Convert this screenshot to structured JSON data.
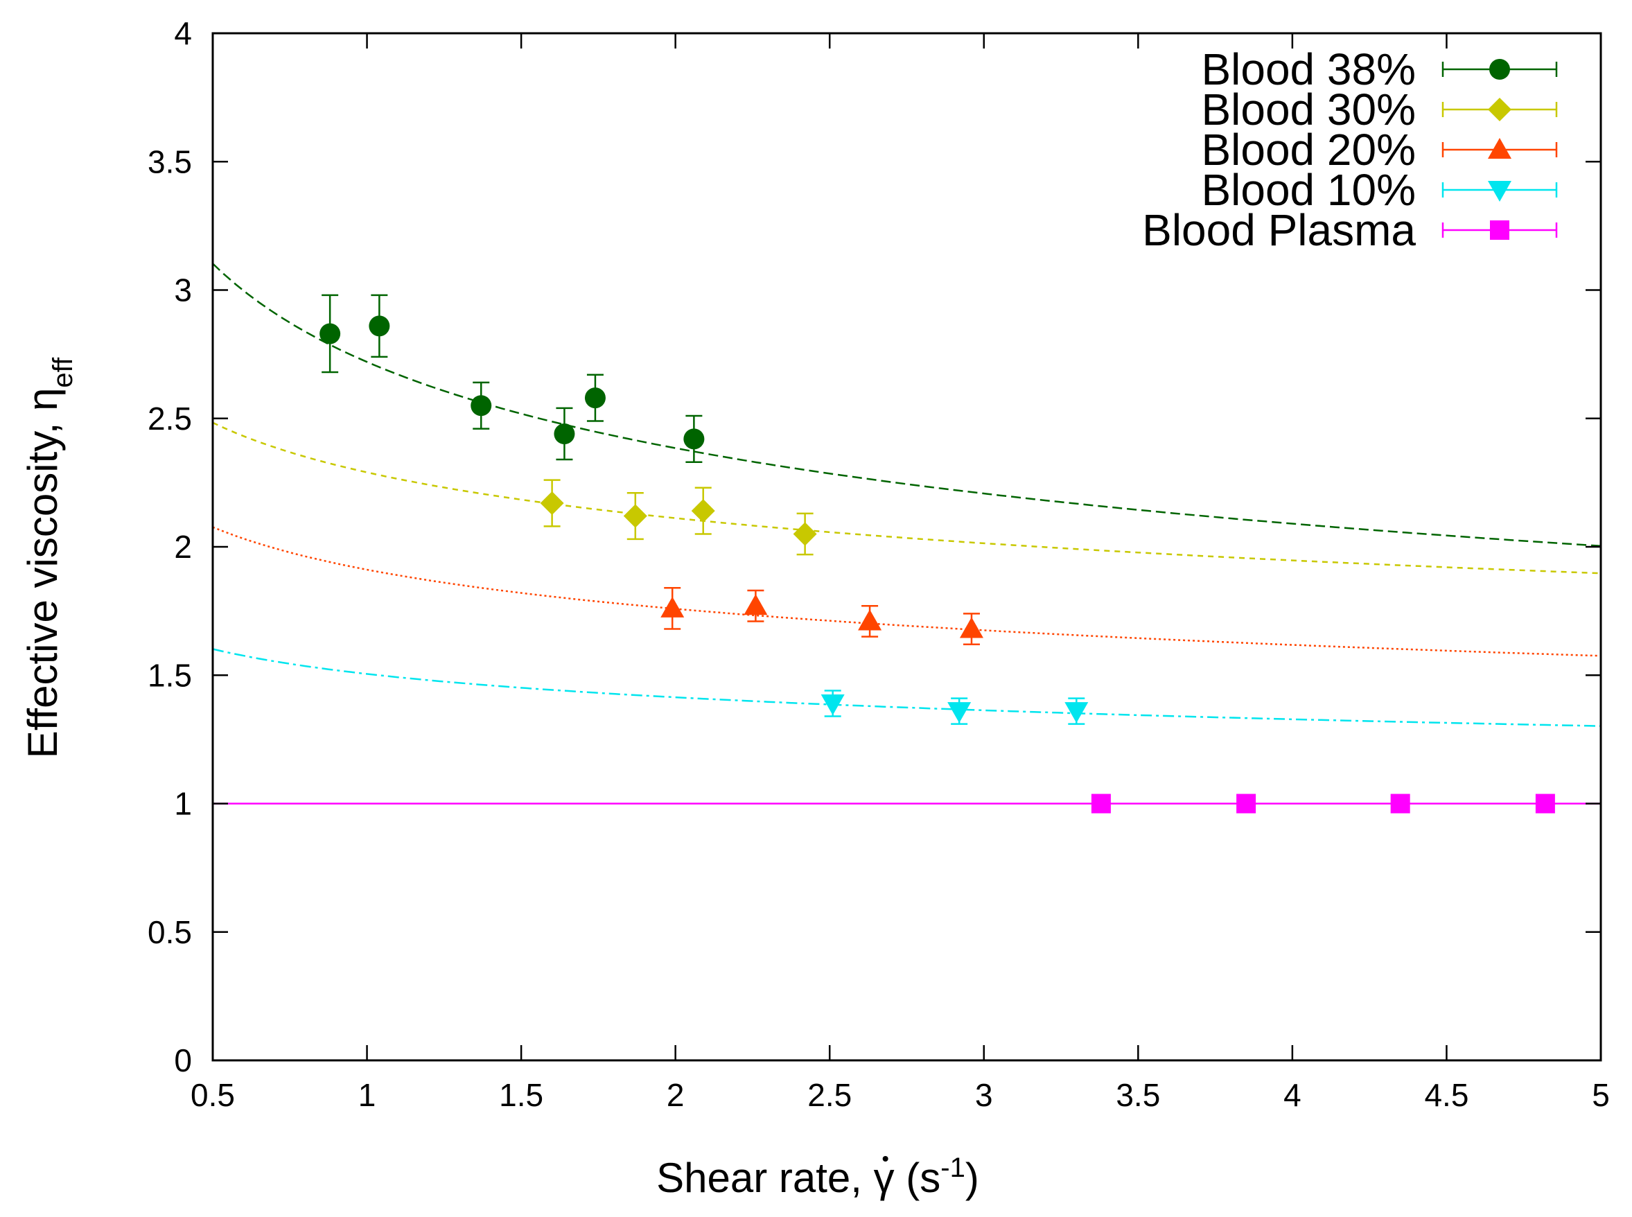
{
  "chart_data": {
    "type": "scatter",
    "xlabel_main": "Shear rate, ",
    "xlabel_symbol": "γ",
    "xlabel_unit": " (s",
    "xlabel_exp": "-1",
    "xlabel_close": ")",
    "ylabel_main": "Effective viscosity, η",
    "ylabel_sub": "eff",
    "xlim": [
      0.5,
      5
    ],
    "ylim": [
      0,
      4
    ],
    "xticks": [
      0.5,
      1,
      1.5,
      2,
      2.5,
      3,
      3.5,
      4,
      4.5,
      5
    ],
    "yticks": [
      0,
      0.5,
      1,
      1.5,
      2,
      2.5,
      3,
      3.5,
      4
    ],
    "xtick_labels": [
      "0.5",
      "1",
      "1.5",
      "2",
      "2.5",
      "3",
      "3.5",
      "4",
      "4.5",
      "5"
    ],
    "ytick_labels": [
      "0",
      "0.5",
      "1",
      "1.5",
      "2",
      "2.5",
      "3",
      "3.5",
      "4"
    ],
    "legend_position": "top-right",
    "grid": false,
    "series": [
      {
        "name": "Blood 38%",
        "color": "#006400",
        "marker": "circle",
        "points": [
          {
            "x": 0.88,
            "y": 2.83,
            "err": 0.15
          },
          {
            "x": 1.04,
            "y": 2.86,
            "err": 0.12
          },
          {
            "x": 1.37,
            "y": 2.55,
            "err": 0.09
          },
          {
            "x": 1.64,
            "y": 2.44,
            "err": 0.1
          },
          {
            "x": 1.74,
            "y": 2.58,
            "err": 0.09
          },
          {
            "x": 2.06,
            "y": 2.42,
            "err": 0.09
          }
        ],
        "fit": {
          "a": 2.72,
          "b": -0.19,
          "dash": "dashed"
        }
      },
      {
        "name": "Blood 30%",
        "color": "#c8c800",
        "marker": "diamond",
        "points": [
          {
            "x": 1.6,
            "y": 2.17,
            "err": 0.09
          },
          {
            "x": 1.87,
            "y": 2.12,
            "err": 0.09
          },
          {
            "x": 2.09,
            "y": 2.14,
            "err": 0.09
          },
          {
            "x": 2.42,
            "y": 2.05,
            "err": 0.08
          }
        ],
        "fit": {
          "a": 2.29,
          "b": -0.117,
          "dash": "short-dashed"
        }
      },
      {
        "name": "Blood 20%",
        "color": "#ff4500",
        "marker": "triangle-up",
        "points": [
          {
            "x": 1.99,
            "y": 1.76,
            "err": 0.08
          },
          {
            "x": 2.26,
            "y": 1.77,
            "err": 0.06
          },
          {
            "x": 2.63,
            "y": 1.71,
            "err": 0.06
          },
          {
            "x": 2.96,
            "y": 1.68,
            "err": 0.06
          }
        ],
        "fit": {
          "a": 1.911,
          "b": -0.12,
          "dash": "dotted"
        }
      },
      {
        "name": "Blood 10%",
        "color": "#00e5ee",
        "marker": "triangle-down",
        "points": [
          {
            "x": 2.51,
            "y": 1.39,
            "err": 0.05
          },
          {
            "x": 2.92,
            "y": 1.36,
            "err": 0.05
          },
          {
            "x": 3.3,
            "y": 1.36,
            "err": 0.05
          }
        ],
        "fit": {
          "a": 1.505,
          "b": -0.09,
          "dash": "dash-dot"
        }
      },
      {
        "name": "Blood Plasma",
        "color": "#ff00ff",
        "marker": "square",
        "points": [
          {
            "x": 3.38,
            "y": 1.0,
            "err": 0.0
          },
          {
            "x": 3.85,
            "y": 1.0,
            "err": 0.0
          },
          {
            "x": 4.35,
            "y": 1.0,
            "err": 0.0
          },
          {
            "x": 4.82,
            "y": 1.0,
            "err": 0.0
          }
        ],
        "fit": {
          "a": 1.0,
          "b": 0.0,
          "dash": "solid"
        }
      }
    ]
  }
}
